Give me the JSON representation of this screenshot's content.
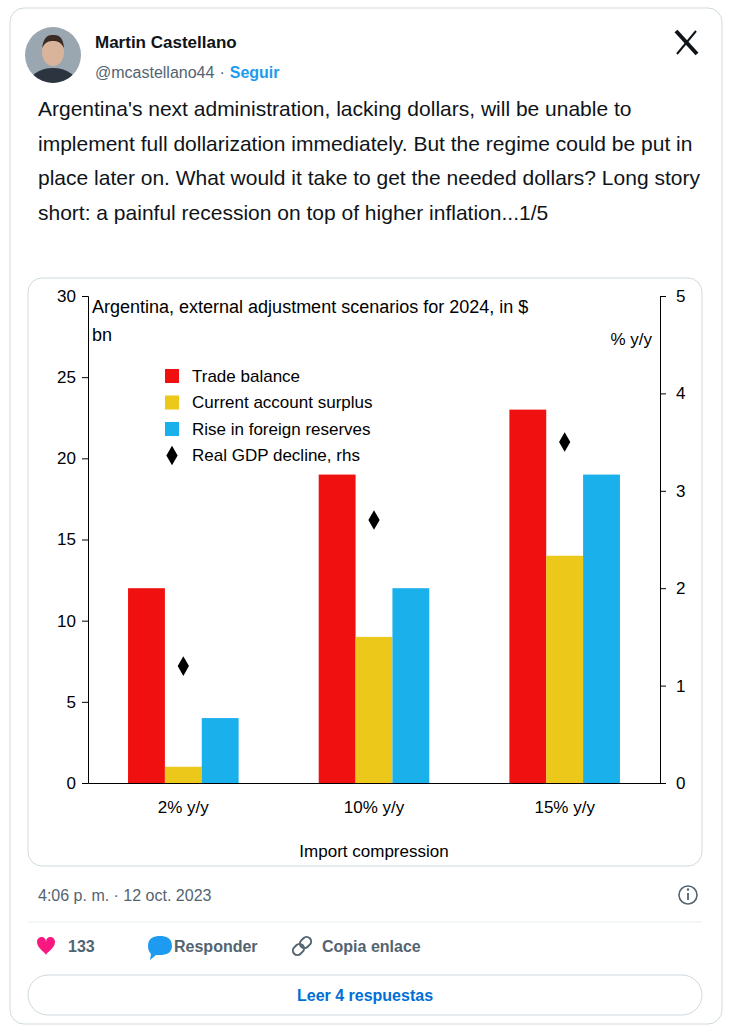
{
  "header": {
    "name": "Martin Castellano",
    "handle": "@mcastellano44",
    "separator": "·",
    "follow": "Seguir"
  },
  "post": {
    "text": "Argentina's next administration, lacking dollars, will be unable to implement full dollarization immediately. But the regime could be put in place later on. What would it take to get the needed dollars? Long story short: a painful recession on top of higher inflation...1/5"
  },
  "chart_data": {
    "type": "bar",
    "title": "Argentina, external adjustment scenarios for 2024, in $ bn",
    "x_label": "Import compression",
    "y2_label": "% y/y",
    "categories": [
      "2% y/y",
      "10% y/y",
      "15% y/y"
    ],
    "series": [
      {
        "name": "Trade balance",
        "color": "#f01010",
        "values": [
          12,
          19,
          23
        ]
      },
      {
        "name": "Current account surplus",
        "color": "#ecc81a",
        "values": [
          1,
          9,
          14
        ]
      },
      {
        "name": "Rise in foreign reserves",
        "color": "#1ab0ec",
        "values": [
          4,
          12,
          19
        ]
      },
      {
        "name": "Real GDP decline, rhs",
        "color": "#000000",
        "type": "scatter",
        "marker": "diamond",
        "axis": "y2",
        "values": [
          1.2,
          2.7,
          3.5
        ]
      }
    ],
    "ylim": [
      0,
      30
    ],
    "yticks": [
      0,
      5,
      10,
      15,
      20,
      25,
      30
    ],
    "y2lim": [
      0,
      5
    ],
    "y2ticks": [
      0,
      1,
      2,
      3,
      4,
      5
    ],
    "grid": false,
    "legend": "upper left"
  },
  "footer": {
    "timestamp": "4:06 p. m. · 12 oct. 2023",
    "likes": 133,
    "reply": "Responder",
    "copy_link": "Copia enlace",
    "read_replies": "Leer 4 respuestas"
  }
}
